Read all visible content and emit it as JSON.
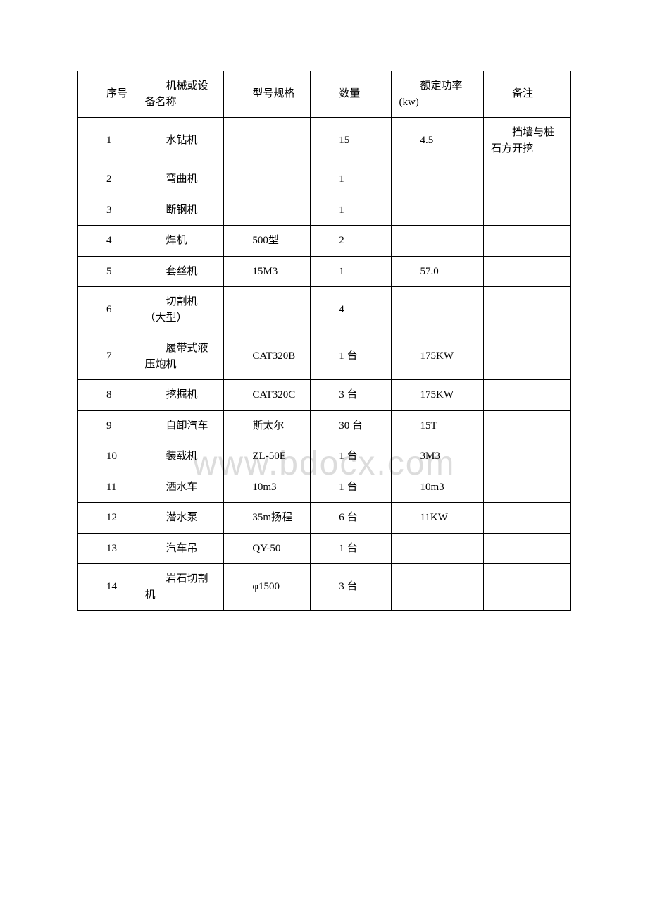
{
  "watermark": "www.bdocx.com",
  "table": {
    "columns": [
      "序号",
      "机械或设备名称",
      "型号规格",
      "数量",
      "额定功率(kw)",
      "备注"
    ],
    "rows": [
      [
        "1",
        "水钻机",
        "",
        "15",
        "4.5",
        "挡墙与桩石方开挖"
      ],
      [
        "2",
        "弯曲机",
        "",
        "1",
        "",
        ""
      ],
      [
        "3",
        "断钢机",
        "",
        "1",
        "",
        ""
      ],
      [
        "4",
        "焊机",
        "500型",
        "2",
        "",
        ""
      ],
      [
        "5",
        "套丝机",
        "15M3",
        "1",
        "57.0",
        ""
      ],
      [
        "6",
        "切割机（大型）",
        "",
        "4",
        "",
        ""
      ],
      [
        "7",
        "履带式液压炮机",
        "CAT320B",
        "1 台",
        "175KW",
        ""
      ],
      [
        "8",
        "挖掘机",
        "CAT320C",
        "3 台",
        "175KW",
        ""
      ],
      [
        "9",
        "自卸汽车",
        "斯太尔",
        "30 台",
        "15T",
        ""
      ],
      [
        "10",
        "装载机",
        "ZL-50E",
        "1 台",
        "3M3",
        ""
      ],
      [
        "11",
        "洒水车",
        "10m3",
        "1 台",
        "10m3",
        ""
      ],
      [
        "12",
        "潜水泵",
        "35m扬程",
        "6 台",
        "11KW",
        ""
      ],
      [
        "13",
        "汽车吊",
        "QY-50",
        "1 台",
        "",
        ""
      ],
      [
        "14",
        "岩石切割机",
        "φ1500",
        "3 台",
        "",
        ""
      ]
    ]
  }
}
